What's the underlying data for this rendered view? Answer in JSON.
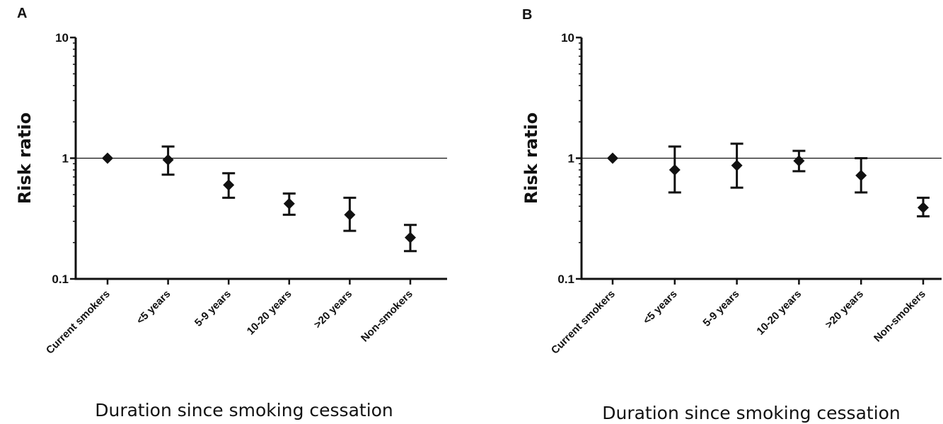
{
  "chart_data": [
    {
      "panel": "A",
      "type": "scatter",
      "categories": [
        "Current smokers",
        "<5 years",
        "5-9 years",
        "10-20 years",
        ">20 years",
        "Non-smokers"
      ],
      "values": [
        1.0,
        0.97,
        0.6,
        0.42,
        0.34,
        0.22
      ],
      "ci_low": [
        1.0,
        0.73,
        0.47,
        0.34,
        0.25,
        0.17
      ],
      "ci_high": [
        1.0,
        1.25,
        0.75,
        0.51,
        0.47,
        0.28
      ],
      "y_ticks": [
        "0.1",
        "1",
        "10"
      ],
      "ylim": [
        0.1,
        10
      ],
      "y_scale": "log",
      "reference_line": 1,
      "xlabel": "Duration since smoking cessation",
      "ylabel": "Risk ratio"
    },
    {
      "panel": "B",
      "type": "scatter",
      "categories": [
        "Current smokers",
        "<5 years",
        "5-9 years",
        "10-20 years",
        ">20 years",
        "Non-smokers"
      ],
      "values": [
        1.0,
        0.8,
        0.87,
        0.95,
        0.72,
        0.39
      ],
      "ci_low": [
        1.0,
        0.52,
        0.57,
        0.78,
        0.52,
        0.33
      ],
      "ci_high": [
        1.0,
        1.25,
        1.32,
        1.15,
        1.0,
        0.47
      ],
      "y_ticks": [
        "0.1",
        "1",
        "10"
      ],
      "ylim": [
        0.1,
        10
      ],
      "y_scale": "log",
      "reference_line": 1,
      "xlabel": "Duration since smoking cessation",
      "ylabel": "Risk ratio"
    }
  ]
}
